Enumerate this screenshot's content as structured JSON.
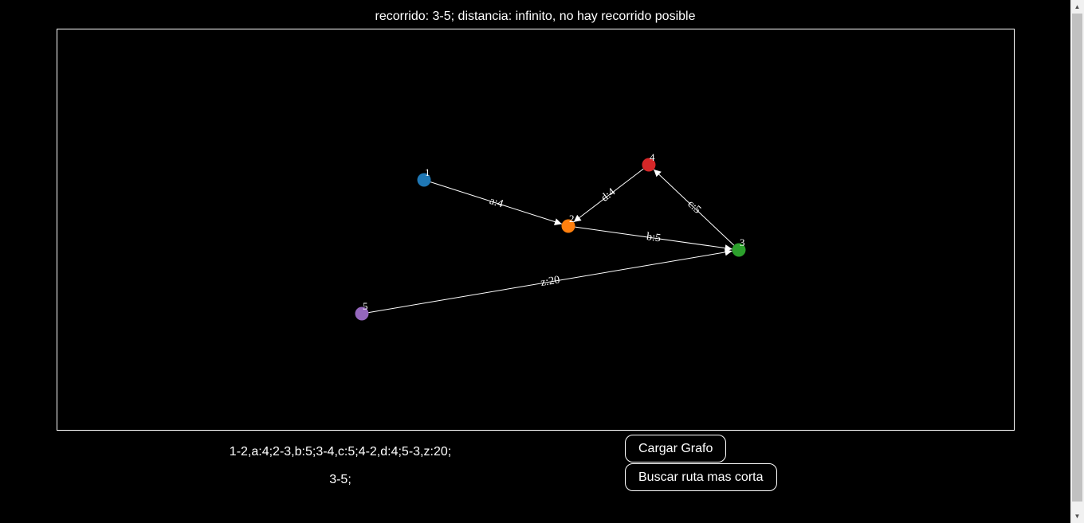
{
  "status": {
    "text": "recorrido: 3-5; distancia: infinito, no hay recorrido posible"
  },
  "graph": {
    "nodes": [
      {
        "id": "1",
        "label": "1",
        "color": "#1f77b4"
      },
      {
        "id": "2",
        "label": "2",
        "color": "#ff7f0e"
      },
      {
        "id": "3",
        "label": "3",
        "color": "#2ca02c"
      },
      {
        "id": "4",
        "label": "4",
        "color": "#d62728"
      },
      {
        "id": "5",
        "label": "5",
        "color": "#9467bd"
      }
    ],
    "edges": [
      {
        "source": "1",
        "target": "2",
        "label": "a:4"
      },
      {
        "source": "2",
        "target": "3",
        "label": "b:5"
      },
      {
        "source": "3",
        "target": "4",
        "label": "c:5"
      },
      {
        "source": "4",
        "target": "2",
        "label": "d:4"
      },
      {
        "source": "5",
        "target": "3",
        "label": "z:20"
      }
    ]
  },
  "inputs": {
    "graph_definition": "1-2,a:4;2-3,b:5;3-4,c:5;4-2,d:4;5-3,z:20;",
    "route": "3-5;"
  },
  "buttons": {
    "load_graph": "Cargar Grafo",
    "find_route": "Buscar ruta mas corta"
  },
  "scrollbar": {
    "up_icon": "scroll-up-arrow",
    "down_icon": "scroll-down-arrow"
  }
}
